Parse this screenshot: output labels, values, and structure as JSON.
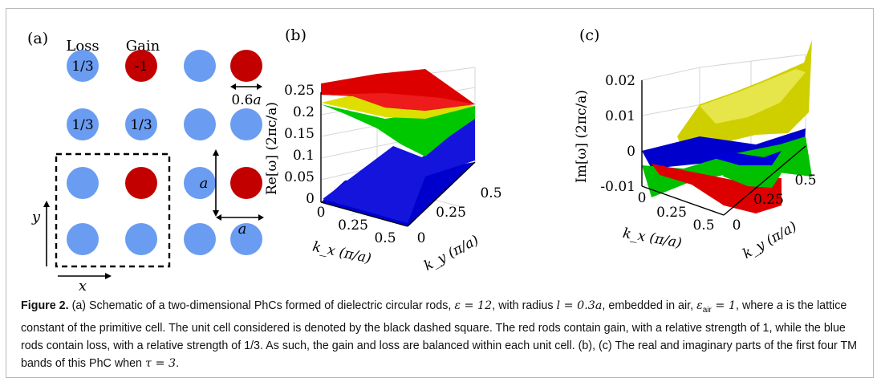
{
  "figure": {
    "panel_a": {
      "label": "(a)",
      "loss_label": "Loss",
      "gain_label": "Gain",
      "rod_values": {
        "loss": "1/3",
        "gain": "-1"
      },
      "radius_label_num": "0.6",
      "radius_label_var": "a",
      "lattice_label": "a",
      "axis_x": "x",
      "axis_y": "y",
      "colors": {
        "loss": "#6a9cf2",
        "gain": "#c30000"
      }
    },
    "panel_b": {
      "label": "(b)",
      "zlabel": "Re[ω] (2πc/a)",
      "z_ticks": [
        "0",
        "0.05",
        "0.1",
        "0.15",
        "0.2",
        "0.25"
      ],
      "kx_ticks": [
        "0",
        "0.25",
        "0.5"
      ],
      "ky_ticks": [
        "0",
        "0.25",
        "0.5"
      ],
      "kx_label": "k_x (π/a)",
      "ky_label": "k_y (π/a)"
    },
    "panel_c": {
      "label": "(c)",
      "zlabel": "Im[ω] (2πc/a)",
      "z_ticks": [
        "-0.01",
        "0",
        "0.01",
        "0.02"
      ],
      "kx_ticks": [
        "0",
        "0.25",
        "0.5"
      ],
      "ky_ticks": [
        "0",
        "0.25",
        "0.5"
      ],
      "kx_label": "k_x (π/a)",
      "ky_label": "k_y (π/a)"
    },
    "band_colors": {
      "band1": "#0000cc",
      "band2": "#00cc00",
      "band3": "#dddd00",
      "band4": "#dd0000"
    }
  },
  "caption": {
    "label": "Figure 2.",
    "text1": " (a) Schematic of a two-dimensional PhCs formed of dielectric circular rods, ",
    "eps_expr": "ε = 12",
    "text2": ", with radius ",
    "l_expr": "l = 0.3a",
    "text3": ", embedded in air, ",
    "eps_air_expr": "ε",
    "eps_air_sub": "air",
    "eps_air_val": " = 1",
    "text4": ", where ",
    "a_var": "a",
    "text5": " is the lattice constant of the primitive cell. The unit cell considered is denoted by the black dashed square. The red rods contain gain, with a relative strength of 1, while the blue rods contain loss, with a relative strength of 1/3. As such, the gain and loss are balanced within each unit cell. (b), (c) The real and imaginary parts of the first four TM bands of this PhC when ",
    "tau_expr": "τ = 3",
    "text6": "."
  }
}
